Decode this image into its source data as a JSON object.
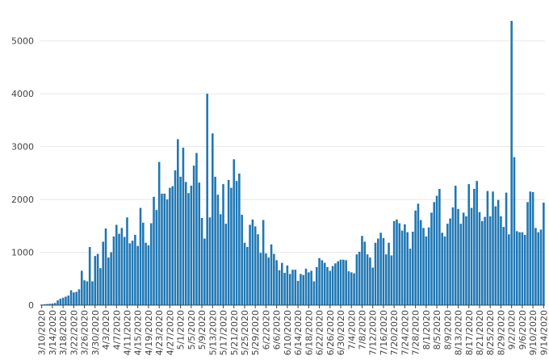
{
  "chart_data": {
    "type": "bar",
    "title": "",
    "xlabel": "",
    "ylabel": "",
    "ylim": [
      0,
      5500
    ],
    "yticks": [
      0,
      1000,
      2000,
      3000,
      4000,
      5000
    ],
    "grid": true,
    "legend": "none",
    "bar_color": "#1f77b4",
    "x_start": "3/10/2020",
    "x_tick_labels": [
      "3/10/2020",
      "3/14/2020",
      "3/18/2020",
      "3/22/2020",
      "3/26/2020",
      "3/30/2020",
      "4/3/2020",
      "4/7/2020",
      "4/11/2020",
      "4/15/2020",
      "4/19/2020",
      "4/23/2020",
      "4/27/2020",
      "5/1/2020",
      "5/5/2020",
      "5/9/2020",
      "5/13/2020",
      "5/17/2020",
      "5/21/2020",
      "5/25/2020",
      "5/29/2020",
      "6/2/2020",
      "6/6/2020",
      "6/10/2020",
      "6/14/2020",
      "6/18/2020",
      "6/22/2020",
      "6/26/2020",
      "6/30/2020",
      "7/4/2020",
      "7/8/2020",
      "7/12/2020",
      "7/16/2020",
      "7/20/2020",
      "7/24/2020",
      "7/28/2020",
      "8/1/2020",
      "8/5/2020",
      "8/9/2020",
      "8/13/2020",
      "8/17/2020",
      "8/21/2020",
      "8/25/2020",
      "8/29/2020",
      "9/2/2020",
      "9/6/2020",
      "9/10/2020",
      "9/14/2020"
    ],
    "values": [
      10,
      15,
      20,
      25,
      30,
      40,
      90,
      120,
      140,
      160,
      180,
      280,
      240,
      250,
      300,
      650,
      470,
      450,
      1100,
      450,
      930,
      970,
      700,
      1200,
      1450,
      900,
      1000,
      1300,
      1520,
      1350,
      1460,
      1290,
      1660,
      1170,
      1220,
      1330,
      1120,
      1840,
      1560,
      1180,
      1130,
      1550,
      2050,
      1800,
      2710,
      2110,
      2110,
      2000,
      2220,
      2250,
      2550,
      3140,
      2430,
      2980,
      2330,
      2120,
      2260,
      2640,
      2880,
      2320,
      1650,
      1260,
      4000,
      1660,
      3250,
      2430,
      2090,
      1720,
      2290,
      1540,
      2370,
      2220,
      2760,
      2350,
      2490,
      1710,
      1180,
      1100,
      1520,
      1620,
      1490,
      1340,
      990,
      1610,
      980,
      900,
      1150,
      970,
      850,
      660,
      800,
      610,
      750,
      590,
      670,
      670,
      460,
      590,
      570,
      690,
      620,
      650,
      450,
      720,
      890,
      850,
      800,
      720,
      650,
      740,
      790,
      830,
      860,
      860,
      850,
      640,
      620,
      600,
      960,
      1010,
      1310,
      1200,
      960,
      900,
      710,
      1180,
      1260,
      1370,
      1270,
      960,
      1180,
      940,
      1590,
      1620,
      1550,
      1410,
      1530,
      1380,
      1070,
      1390,
      1790,
      1920,
      1610,
      1460,
      1300,
      1470,
      1750,
      1950,
      2070,
      2200,
      1370,
      1300,
      1540,
      1640,
      1850,
      2260,
      1820,
      1540,
      1750,
      1680,
      2290,
      1840,
      2200,
      2350,
      1760,
      1590,
      1670,
      2160,
      1680,
      2150,
      1870,
      1990,
      1680,
      1480,
      2130,
      1340,
      5380,
      2800,
      1400,
      1380,
      1380,
      1330,
      1950,
      2150,
      2140,
      1460,
      1380,
      1430,
      1940
    ]
  }
}
